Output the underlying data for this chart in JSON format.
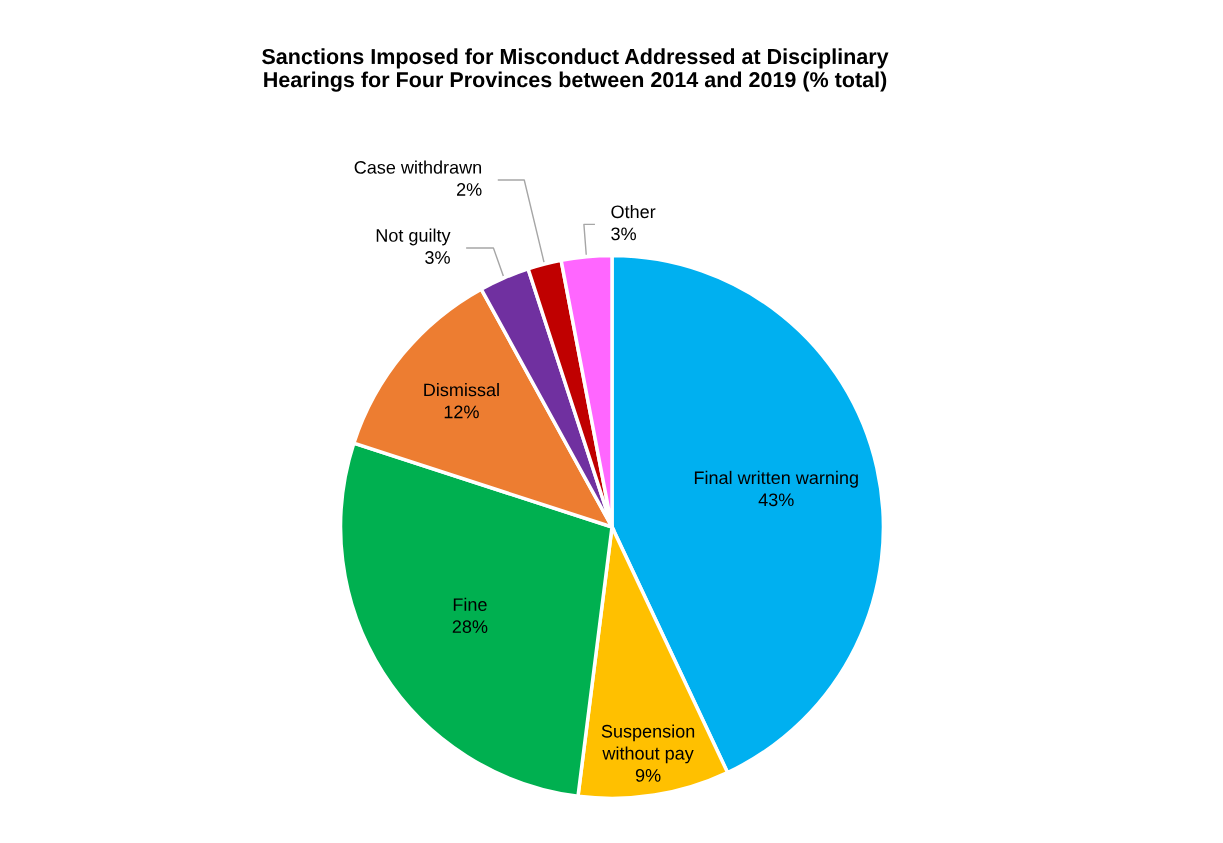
{
  "chart_data": {
    "type": "pie",
    "title": "Sanctions Imposed for Misconduct Addressed at Disciplinary\nHearings for Four Provinces between 2014 and 2019 (% total)",
    "categories": [
      "Final written warning",
      "Suspension\nwithout pay",
      "Fine",
      "Dismissal",
      "Not guilty",
      "Case withdrawn",
      "Other"
    ],
    "values": [
      43,
      9,
      28,
      12,
      3,
      2,
      3
    ],
    "value_labels": [
      "43%",
      "9%",
      "28%",
      "12%",
      "3%",
      "2%",
      "3%"
    ],
    "colors": [
      "#00b0f0",
      "#ffc000",
      "#00b050",
      "#ed7d31",
      "#7030a0",
      "#c00000",
      "#ff66ff"
    ],
    "legend": false
  }
}
